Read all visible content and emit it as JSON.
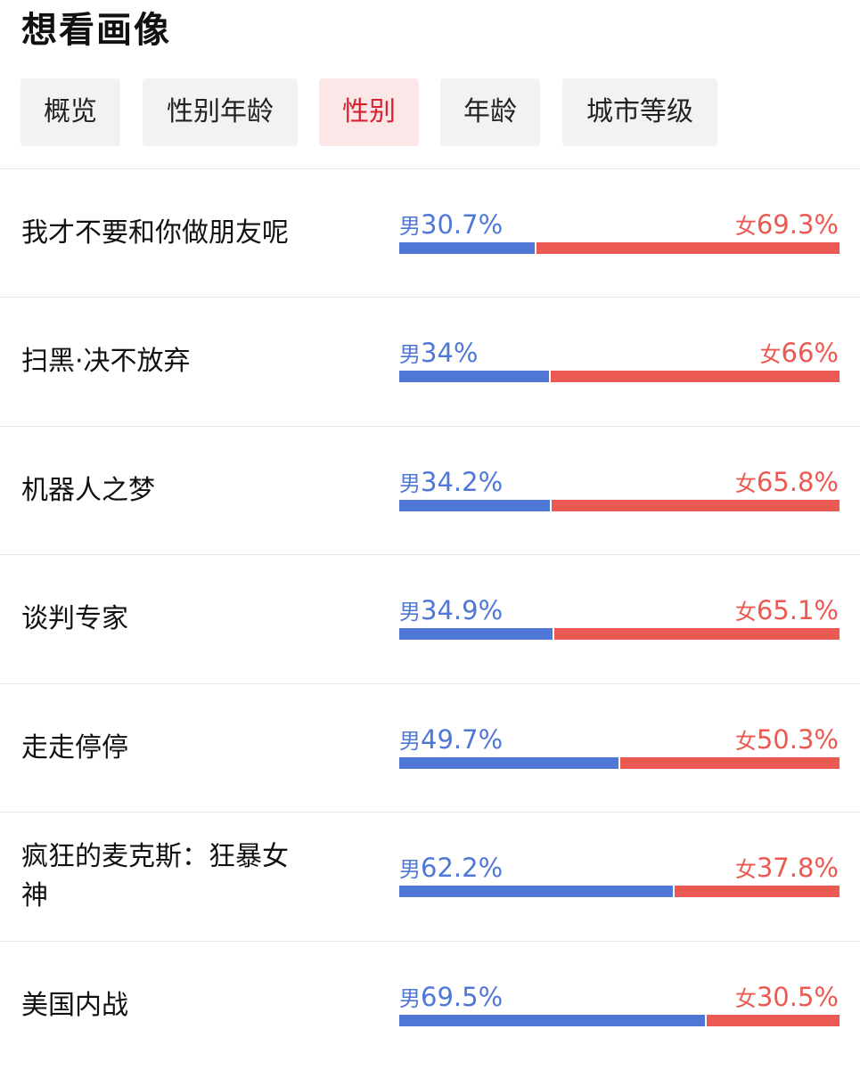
{
  "page": {
    "title": "想看画像"
  },
  "tabs": [
    {
      "label": "概览",
      "active": false
    },
    {
      "label": "性别年龄",
      "active": false
    },
    {
      "label": "性别",
      "active": true
    },
    {
      "label": "年龄",
      "active": false
    },
    {
      "label": "城市等级",
      "active": false
    }
  ],
  "colors": {
    "male": "#4f78d6",
    "female": "#ea5a52",
    "active_tab_text": "#d8232f",
    "active_tab_bg": "#fbe6e8"
  },
  "gender_label": {
    "male": "男",
    "female": "女"
  },
  "rows": [
    {
      "title": "我才不要和你做朋友呢",
      "male": "30.7%",
      "female": "69.3%",
      "male_share": 30.7
    },
    {
      "title": "扫黑·决不放弃",
      "male": "34%",
      "female": "66%",
      "male_share": 34
    },
    {
      "title": "机器人之梦",
      "male": "34.2%",
      "female": "65.8%",
      "male_share": 34.2
    },
    {
      "title": "谈判专家",
      "male": "34.9%",
      "female": "65.1%",
      "male_share": 34.9
    },
    {
      "title": "走走停停",
      "male": "49.7%",
      "female": "50.3%",
      "male_share": 49.7
    },
    {
      "title": "疯狂的麦克斯：狂暴女神",
      "male": "62.2%",
      "female": "37.8%",
      "male_share": 62.2
    },
    {
      "title": "美国内战",
      "male": "69.5%",
      "female": "30.5%",
      "male_share": 69.5
    }
  ]
}
